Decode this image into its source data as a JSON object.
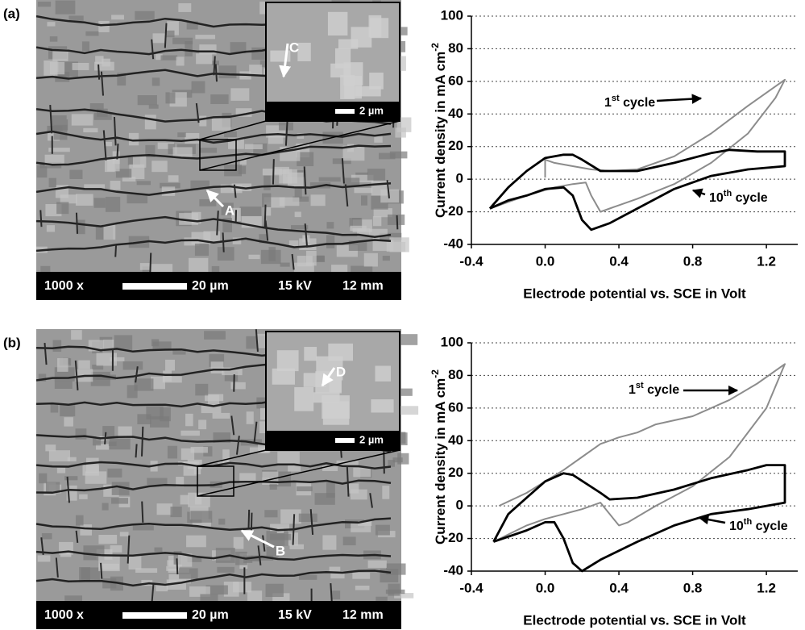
{
  "micrographs": [
    {
      "panel_label": "(a)",
      "magnification": "1000 x",
      "scale": "20 µm",
      "voltage": "15 kV",
      "distance": "12 mm",
      "inset_scale": "2 µm",
      "markers": [
        "A",
        "C"
      ]
    },
    {
      "panel_label": "(b)",
      "magnification": "1000 x",
      "scale": "20 µm",
      "voltage": "15 kV",
      "distance": "12 mm",
      "inset_scale": "2 µm",
      "markers": [
        "B",
        "D"
      ]
    }
  ],
  "chart_data": [
    {
      "type": "line",
      "ylabel": "Current density in mA cm",
      "ylabel_superscript": "-2",
      "xlabel": "Electrode potential vs. SCE in Volt",
      "xlim": [
        -0.4,
        1.37
      ],
      "ylim": [
        -40,
        100
      ],
      "xticks": [
        -0.4,
        {
          "value": 0,
          "label": "0.0"
        },
        0.4,
        0.8,
        1.2
      ],
      "yticks": [
        -40,
        -20,
        0,
        20,
        40,
        60,
        80,
        100
      ],
      "grid": true,
      "annotations": [
        {
          "text": "1",
          "sup": "st",
          "tail": " cycle"
        },
        {
          "text": "10",
          "sup": "th",
          "tail": " cycle"
        }
      ],
      "series": [
        {
          "color": "#8c8c8c",
          "x": [
            0.0,
            0.0,
            0.05,
            0.15,
            0.25,
            0.35,
            0.5,
            0.7,
            0.9,
            1.1,
            1.3,
            1.25,
            1.1,
            0.9,
            0.7,
            0.5,
            0.35,
            0.3,
            0.25,
            0.22,
            0.15,
            0.05,
            -0.1,
            -0.3
          ],
          "values": [
            1,
            12,
            10,
            8,
            6,
            5,
            6,
            14,
            28,
            45,
            61,
            50,
            28,
            10,
            -3,
            -12,
            -18,
            -20,
            -10,
            -2,
            -3,
            -5,
            -10,
            -18
          ]
        },
        {
          "color": "#000000",
          "x": [
            -0.3,
            -0.2,
            -0.1,
            0.0,
            0.1,
            0.15,
            0.2,
            0.3,
            0.5,
            0.7,
            0.9,
            1.0,
            1.15,
            1.3,
            1.3,
            1.1,
            0.9,
            0.7,
            0.5,
            0.35,
            0.25,
            0.2,
            0.15,
            0.1,
            0.0,
            -0.1,
            -0.2,
            -0.3
          ],
          "values": [
            -18,
            -5,
            5,
            13,
            15,
            15,
            12,
            5,
            5,
            10,
            16,
            18,
            17,
            17,
            8,
            6,
            2,
            -6,
            -18,
            -27,
            -31,
            -25,
            -10,
            -5,
            -6,
            -10,
            -13,
            -18
          ]
        }
      ]
    },
    {
      "type": "line",
      "ylabel": "Current density in mA cm",
      "ylabel_superscript": "-2",
      "xlabel": "Electrode potential vs. SCE in Volt",
      "xlim": [
        -0.4,
        1.37
      ],
      "ylim": [
        -40,
        100
      ],
      "xticks": [
        -0.4,
        {
          "value": 0,
          "label": "0.0"
        },
        0.4,
        0.8,
        1.2
      ],
      "yticks": [
        -40,
        -20,
        0,
        20,
        40,
        60,
        80,
        100
      ],
      "grid": true,
      "annotations": [
        {
          "text": "1",
          "sup": "st",
          "tail": " cycle"
        },
        {
          "text": "10",
          "sup": "th",
          "tail": " cycle"
        }
      ],
      "series": [
        {
          "color": "#8c8c8c",
          "x": [
            -0.25,
            -0.1,
            0.0,
            0.1,
            0.2,
            0.3,
            0.4,
            0.5,
            0.6,
            0.8,
            1.0,
            1.15,
            1.3,
            1.2,
            1.0,
            0.8,
            0.6,
            0.45,
            0.4,
            0.35,
            0.3,
            0.2,
            0.1,
            0.0,
            -0.1,
            -0.28
          ],
          "values": [
            0,
            8,
            15,
            22,
            30,
            38,
            42,
            45,
            50,
            55,
            65,
            75,
            87,
            60,
            30,
            12,
            0,
            -10,
            -12,
            -5,
            2,
            -2,
            -5,
            -8,
            -12,
            -22
          ]
        },
        {
          "color": "#000000",
          "x": [
            -0.28,
            -0.2,
            -0.1,
            0.0,
            0.1,
            0.15,
            0.3,
            0.35,
            0.5,
            0.7,
            0.9,
            1.1,
            1.2,
            1.3,
            1.3,
            1.1,
            0.9,
            0.7,
            0.5,
            0.3,
            0.2,
            0.15,
            0.1,
            0.05,
            0.0,
            -0.1,
            -0.28
          ],
          "values": [
            -22,
            -5,
            5,
            15,
            20,
            19,
            8,
            4,
            5,
            10,
            17,
            22,
            25,
            25,
            2,
            -2,
            -5,
            -12,
            -22,
            -33,
            -40,
            -35,
            -20,
            -10,
            -10,
            -15,
            -22
          ]
        }
      ]
    }
  ]
}
